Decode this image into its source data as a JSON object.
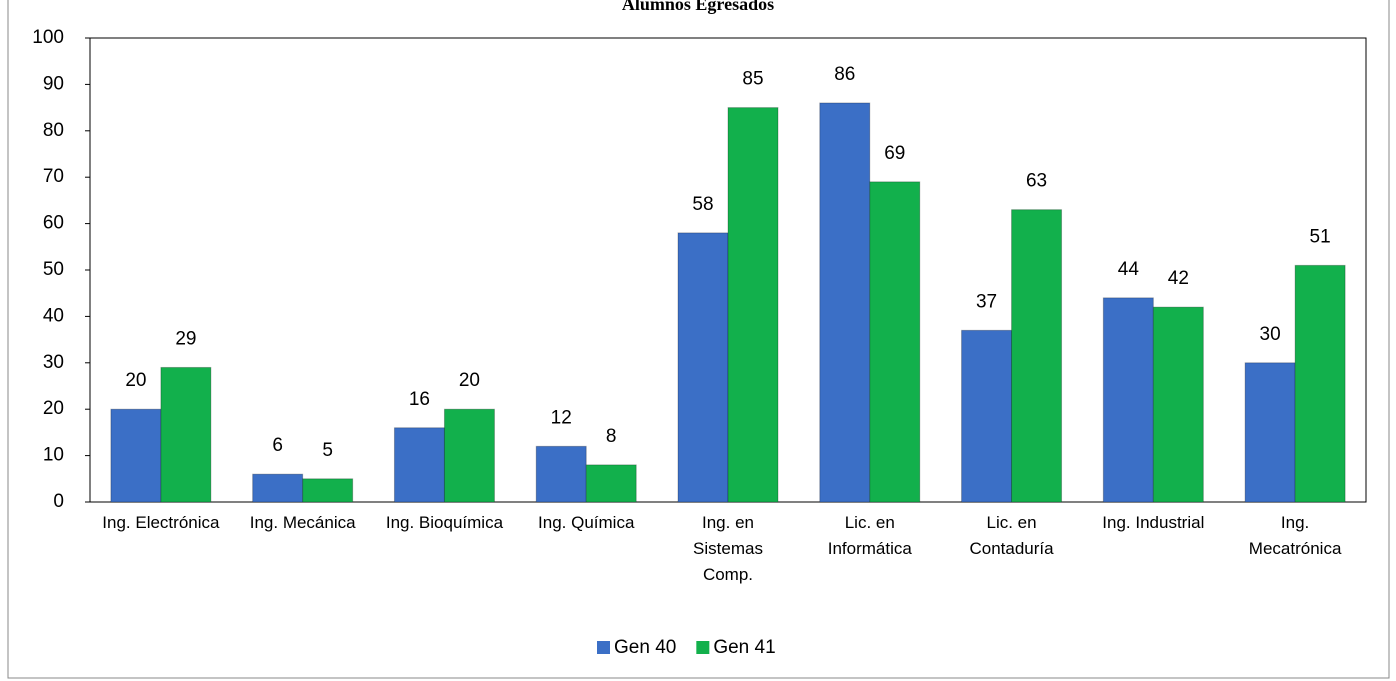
{
  "chart_data": {
    "type": "bar",
    "title": "Alumnos Egresados",
    "categories": [
      "Ing. Electrónica",
      "Ing. Mecánica",
      "Ing. Bioquímica",
      "Ing. Química",
      "Ing. en Sistemas Comp.",
      "Lic. en Informática",
      "Lic. en Contaduría",
      "Ing. Industrial",
      "Ing. Mecatrónica"
    ],
    "series": [
      {
        "name": "Gen 40",
        "color": "#3b6fc6",
        "values": [
          20,
          6,
          16,
          12,
          58,
          86,
          37,
          44,
          30
        ]
      },
      {
        "name": "Gen 41",
        "color": "#12b04c",
        "values": [
          29,
          5,
          20,
          8,
          85,
          69,
          63,
          42,
          51
        ]
      }
    ],
    "ylim": [
      0,
      100
    ],
    "yticks": [
      0,
      10,
      20,
      30,
      40,
      50,
      60,
      70,
      80,
      90,
      100
    ],
    "grid": false,
    "legend": "bottom"
  }
}
